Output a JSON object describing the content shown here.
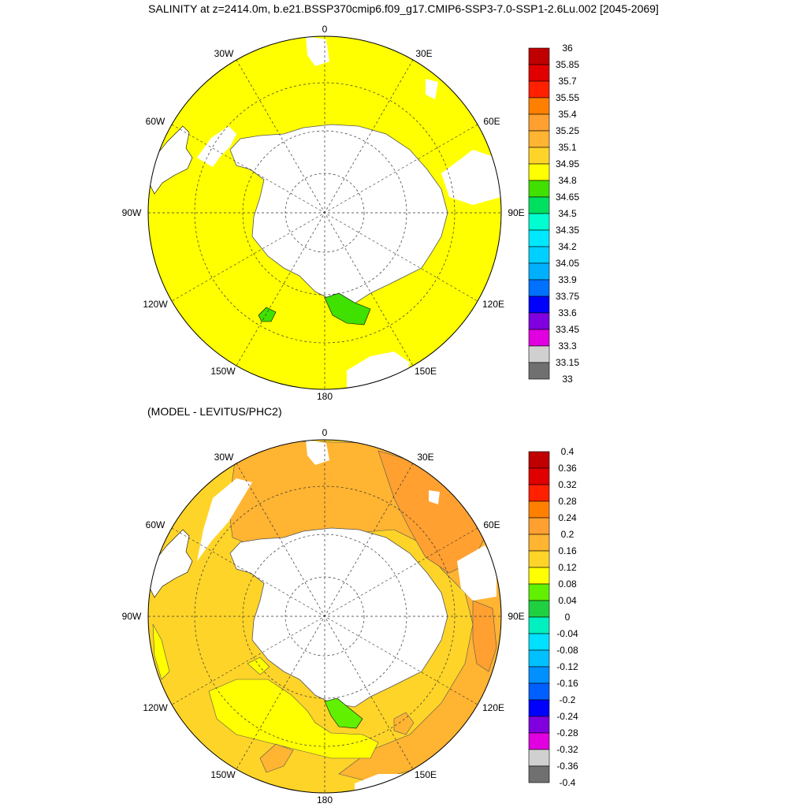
{
  "title": "SALINITY at z=2414.0m, b.e21.BSSP370cmip6.f09_g17.CMIP6-SSP3-7.0-SSP1-2.6Lu.002 [2045-2069]",
  "subtitle": "(MODEL - LEVITUS/PHC2)",
  "longitude_labels": {
    "top": "0",
    "r30e": "30E",
    "r60e": "60E",
    "r90e": "90E",
    "r120e": "120E",
    "r150e": "150E",
    "bottom": "180",
    "r150w": "150W",
    "r120w": "120W",
    "r90w": "90W",
    "r60w": "60W",
    "r30w": "30W"
  },
  "top_colorbar": {
    "labels": [
      "36",
      "35.85",
      "35.7",
      "35.55",
      "35.4",
      "35.25",
      "35.1",
      "34.95",
      "34.8",
      "34.65",
      "34.5",
      "34.35",
      "34.2",
      "34.05",
      "33.9",
      "33.75",
      "33.6",
      "33.45",
      "33.3",
      "33.15",
      "33"
    ],
    "colors": [
      "#c00000",
      "#e00000",
      "#ff2000",
      "#ff8000",
      "#ffa030",
      "#ffb432",
      "#ffd428",
      "#ffff00",
      "#40e000",
      "#00e060",
      "#00ffd0",
      "#00e8ff",
      "#00d0ff",
      "#00b0ff",
      "#0070ff",
      "#0000ff",
      "#8000e0",
      "#e000e0",
      "#d0d0d0",
      "#707070"
    ]
  },
  "bottom_colorbar": {
    "labels": [
      "0.4",
      "0.36",
      "0.32",
      "0.28",
      "0.24",
      "0.2",
      "0.16",
      "0.12",
      "0.08",
      "0.04",
      "0",
      "-0.04",
      "-0.08",
      "-0.12",
      "-0.16",
      "-0.2",
      "-0.24",
      "-0.28",
      "-0.32",
      "-0.36",
      "-0.4"
    ],
    "colors": [
      "#c00000",
      "#e00000",
      "#ff2000",
      "#ff8000",
      "#ffa030",
      "#ffb432",
      "#ffd428",
      "#ffff00",
      "#60f000",
      "#20d040",
      "#00f0c0",
      "#00e0ff",
      "#00c0ff",
      "#0090ff",
      "#0060ff",
      "#0000ff",
      "#8000e0",
      "#e000e0",
      "#d0d0d0",
      "#707070"
    ]
  },
  "map_fields": {
    "top_ocean_fill": "#ffff00",
    "top_anomaly_fill": "#40e000",
    "bottom_warm_fill": "#ffd428",
    "bottom_warmer_fill": "#ffb432",
    "bottom_hot_fill": "#ffa030",
    "bottom_cool_fill": "#ffff00",
    "bottom_green_fill": "#60f000"
  }
}
